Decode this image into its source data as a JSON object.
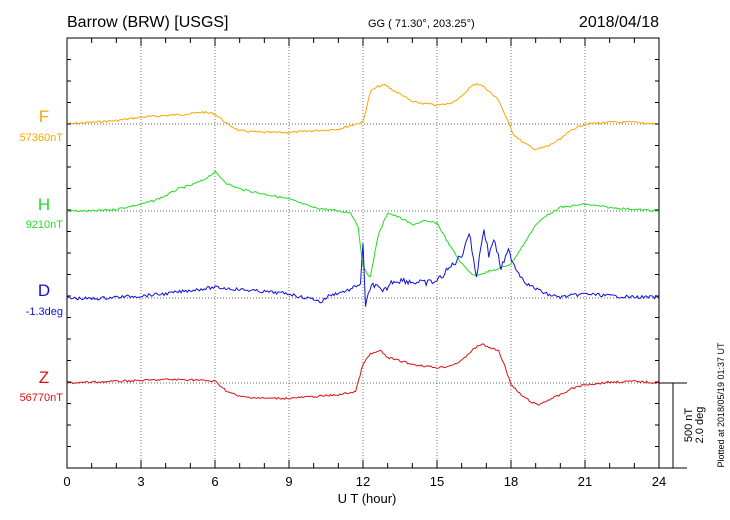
{
  "header": {
    "title": "Barrow (BRW)  [USGS]",
    "coords": "GG ( 71.30°, 203.25°)",
    "date": "2018/04/18"
  },
  "side_note": "Plotted at 2018/05/19 01:37 UT",
  "scale": {
    "nt": "500 nT",
    "deg": "2.0 deg"
  },
  "chart_data": {
    "type": "line",
    "xlabel": "U T (hour)",
    "xlim": [
      0,
      24
    ],
    "x_ticks": [
      0,
      3,
      6,
      9,
      12,
      15,
      18,
      21,
      24
    ],
    "grid": true,
    "series": [
      {
        "name": "F",
        "baseline_label": "57360nT",
        "color": "#f5a800",
        "unit": "nT",
        "baseline": 57360,
        "x": [
          0,
          1,
          2,
          3,
          4,
          5,
          5.5,
          6,
          6.5,
          7,
          8,
          9,
          10,
          11,
          11.7,
          12,
          12.3,
          12.6,
          12.9,
          13.2,
          13.6,
          14,
          14.5,
          15,
          15.5,
          16,
          16.3,
          16.6,
          16.9,
          17.2,
          17.5,
          17.8,
          18.1,
          18.5,
          19,
          19.5,
          20,
          20.5,
          21,
          22,
          23,
          24
        ],
        "values": [
          57360,
          57370,
          57380,
          57400,
          57410,
          57420,
          57430,
          57420,
          57360,
          57320,
          57310,
          57310,
          57320,
          57330,
          57360,
          57370,
          57550,
          57580,
          57590,
          57560,
          57530,
          57490,
          57480,
          57470,
          57480,
          57520,
          57570,
          57600,
          57580,
          57540,
          57500,
          57400,
          57300,
          57250,
          57210,
          57230,
          57270,
          57330,
          57360,
          57370,
          57370,
          57360
        ]
      },
      {
        "name": "H",
        "baseline_label": "9210nT",
        "color": "#22dd22",
        "unit": "nT",
        "baseline": 9210,
        "x": [
          0,
          1,
          2,
          3,
          3.5,
          4,
          4.5,
          5,
          5.5,
          6,
          6.5,
          7,
          8,
          9,
          10,
          10.5,
          11,
          11.5,
          11.8,
          12,
          12.3,
          12.6,
          13,
          13.5,
          14,
          14.5,
          15,
          15.5,
          16,
          16.5,
          17,
          17.5,
          18,
          18.5,
          19,
          19.5,
          20,
          21,
          22,
          23,
          24
        ],
        "values": [
          9210,
          9210,
          9220,
          9250,
          9270,
          9300,
          9340,
          9360,
          9390,
          9440,
          9370,
          9340,
          9310,
          9280,
          9230,
          9220,
          9210,
          9200,
          9120,
          8880,
          8820,
          9060,
          9200,
          9170,
          9130,
          9150,
          9140,
          9010,
          8900,
          8830,
          8850,
          8870,
          8900,
          9010,
          9130,
          9190,
          9230,
          9250,
          9230,
          9220,
          9210
        ]
      },
      {
        "name": "D",
        "baseline_label": "-1.3deg",
        "color": "#1111dd",
        "unit": "deg",
        "baseline": -1.3,
        "x": [
          0,
          1,
          2,
          3,
          4,
          5,
          6,
          7,
          8,
          9,
          9.5,
          10,
          10.3,
          10.6,
          11,
          11.5,
          11.9,
          12,
          12.1,
          12.4,
          12.8,
          13.2,
          13.6,
          14,
          14.5,
          15,
          15.5,
          16,
          16.3,
          16.6,
          16.9,
          17.1,
          17.3,
          17.6,
          17.9,
          18.2,
          18.6,
          19,
          19.5,
          20,
          21,
          22,
          23,
          24
        ],
        "values": [
          -1.3,
          -1.32,
          -1.28,
          -1.25,
          -1.2,
          -1.12,
          -1.05,
          -1.1,
          -1.15,
          -1.2,
          -1.28,
          -1.32,
          -1.4,
          -1.25,
          -1.18,
          -1.1,
          -0.95,
          -0.05,
          -1.45,
          -0.95,
          -1.18,
          -0.9,
          -0.88,
          -0.92,
          -0.95,
          -0.9,
          -0.6,
          -0.3,
          0.25,
          -0.8,
          0.35,
          -0.3,
          0.1,
          -0.6,
          -0.2,
          -0.6,
          -0.95,
          -1.08,
          -1.22,
          -1.28,
          -1.2,
          -1.25,
          -1.28,
          -1.28
        ]
      },
      {
        "name": "Z",
        "baseline_label": "56770nT",
        "color": "#dd1111",
        "unit": "nT",
        "baseline": 56770,
        "x": [
          0,
          1,
          2,
          3,
          4,
          5,
          6,
          6.5,
          7,
          8,
          9,
          10,
          11,
          11.7,
          12,
          12.3,
          12.7,
          13,
          13.5,
          14,
          14.5,
          15,
          15.5,
          16,
          16.4,
          16.8,
          17.1,
          17.5,
          17.8,
          18,
          18.4,
          18.8,
          19.1,
          19.5,
          20,
          20.5,
          21,
          22,
          23,
          24
        ],
        "values": [
          56770,
          56775,
          56780,
          56785,
          56790,
          56790,
          56780,
          56720,
          56690,
          56680,
          56680,
          56690,
          56700,
          56720,
          56880,
          56940,
          56960,
          56920,
          56900,
          56880,
          56870,
          56860,
          56870,
          56900,
          56960,
          57000,
          56980,
          56960,
          56850,
          56760,
          56700,
          56660,
          56640,
          56670,
          56700,
          56740,
          56760,
          56775,
          56780,
          56770
        ]
      }
    ]
  }
}
